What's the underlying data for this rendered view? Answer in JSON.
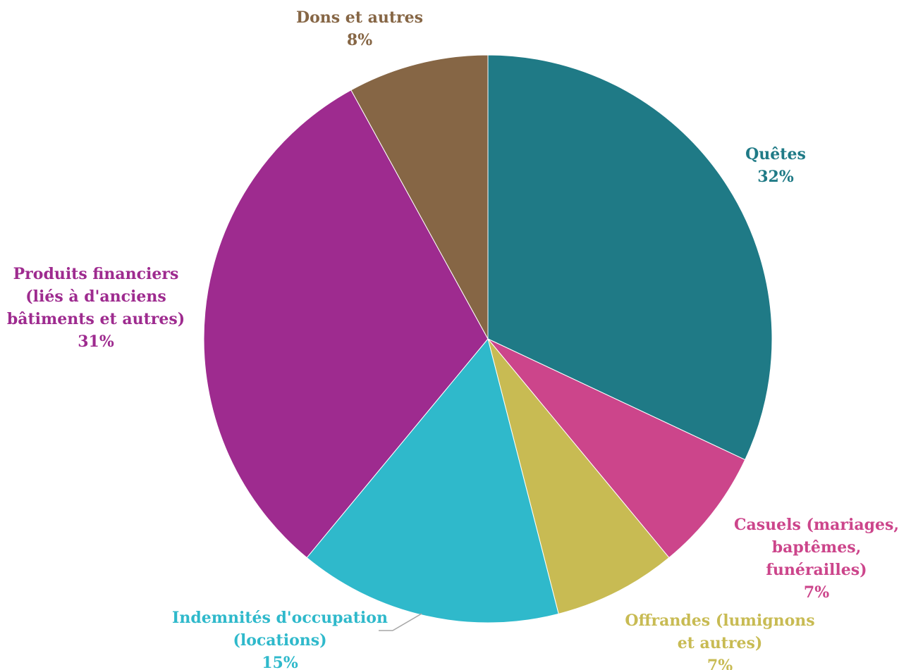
{
  "chart_data": {
    "type": "pie",
    "title": "",
    "slices": [
      {
        "name": "Quêtes",
        "value": 32,
        "pct_label": "32%",
        "color": "#1f7a86",
        "label_lines": [
          "Quêtes"
        ]
      },
      {
        "name": "Casuels (mariages, baptêmes, funérailles)",
        "value": 7,
        "pct_label": "7%",
        "color": "#cc458b",
        "label_lines": [
          "Casuels (mariages,",
          "baptêmes,",
          "funérailles)"
        ]
      },
      {
        "name": "Offrandes (lumignons et autres)",
        "value": 7,
        "pct_label": "7%",
        "color": "#c8bb53",
        "label_lines": [
          "Offrandes (lumignons",
          "et autres)"
        ]
      },
      {
        "name": "Indemnités d'occupation (locations)",
        "value": 15,
        "pct_label": "15%",
        "color": "#2fb9cb",
        "label_lines": [
          "Indemnités d'occupation",
          "(locations)"
        ]
      },
      {
        "name": "Produits financiers (liés à d'anciens bâtiments et autres)",
        "value": 31,
        "pct_label": "31%",
        "color": "#9e2b8f",
        "label_lines": [
          "Produits financiers",
          "(liés à d'anciens",
          "bâtiments et autres)"
        ]
      },
      {
        "name": "Dons et autres",
        "value": 8,
        "pct_label": "8%",
        "color": "#866645",
        "label_lines": [
          "Dons et autres"
        ]
      }
    ],
    "legend": "none",
    "label_style": "category name and percentage"
  }
}
